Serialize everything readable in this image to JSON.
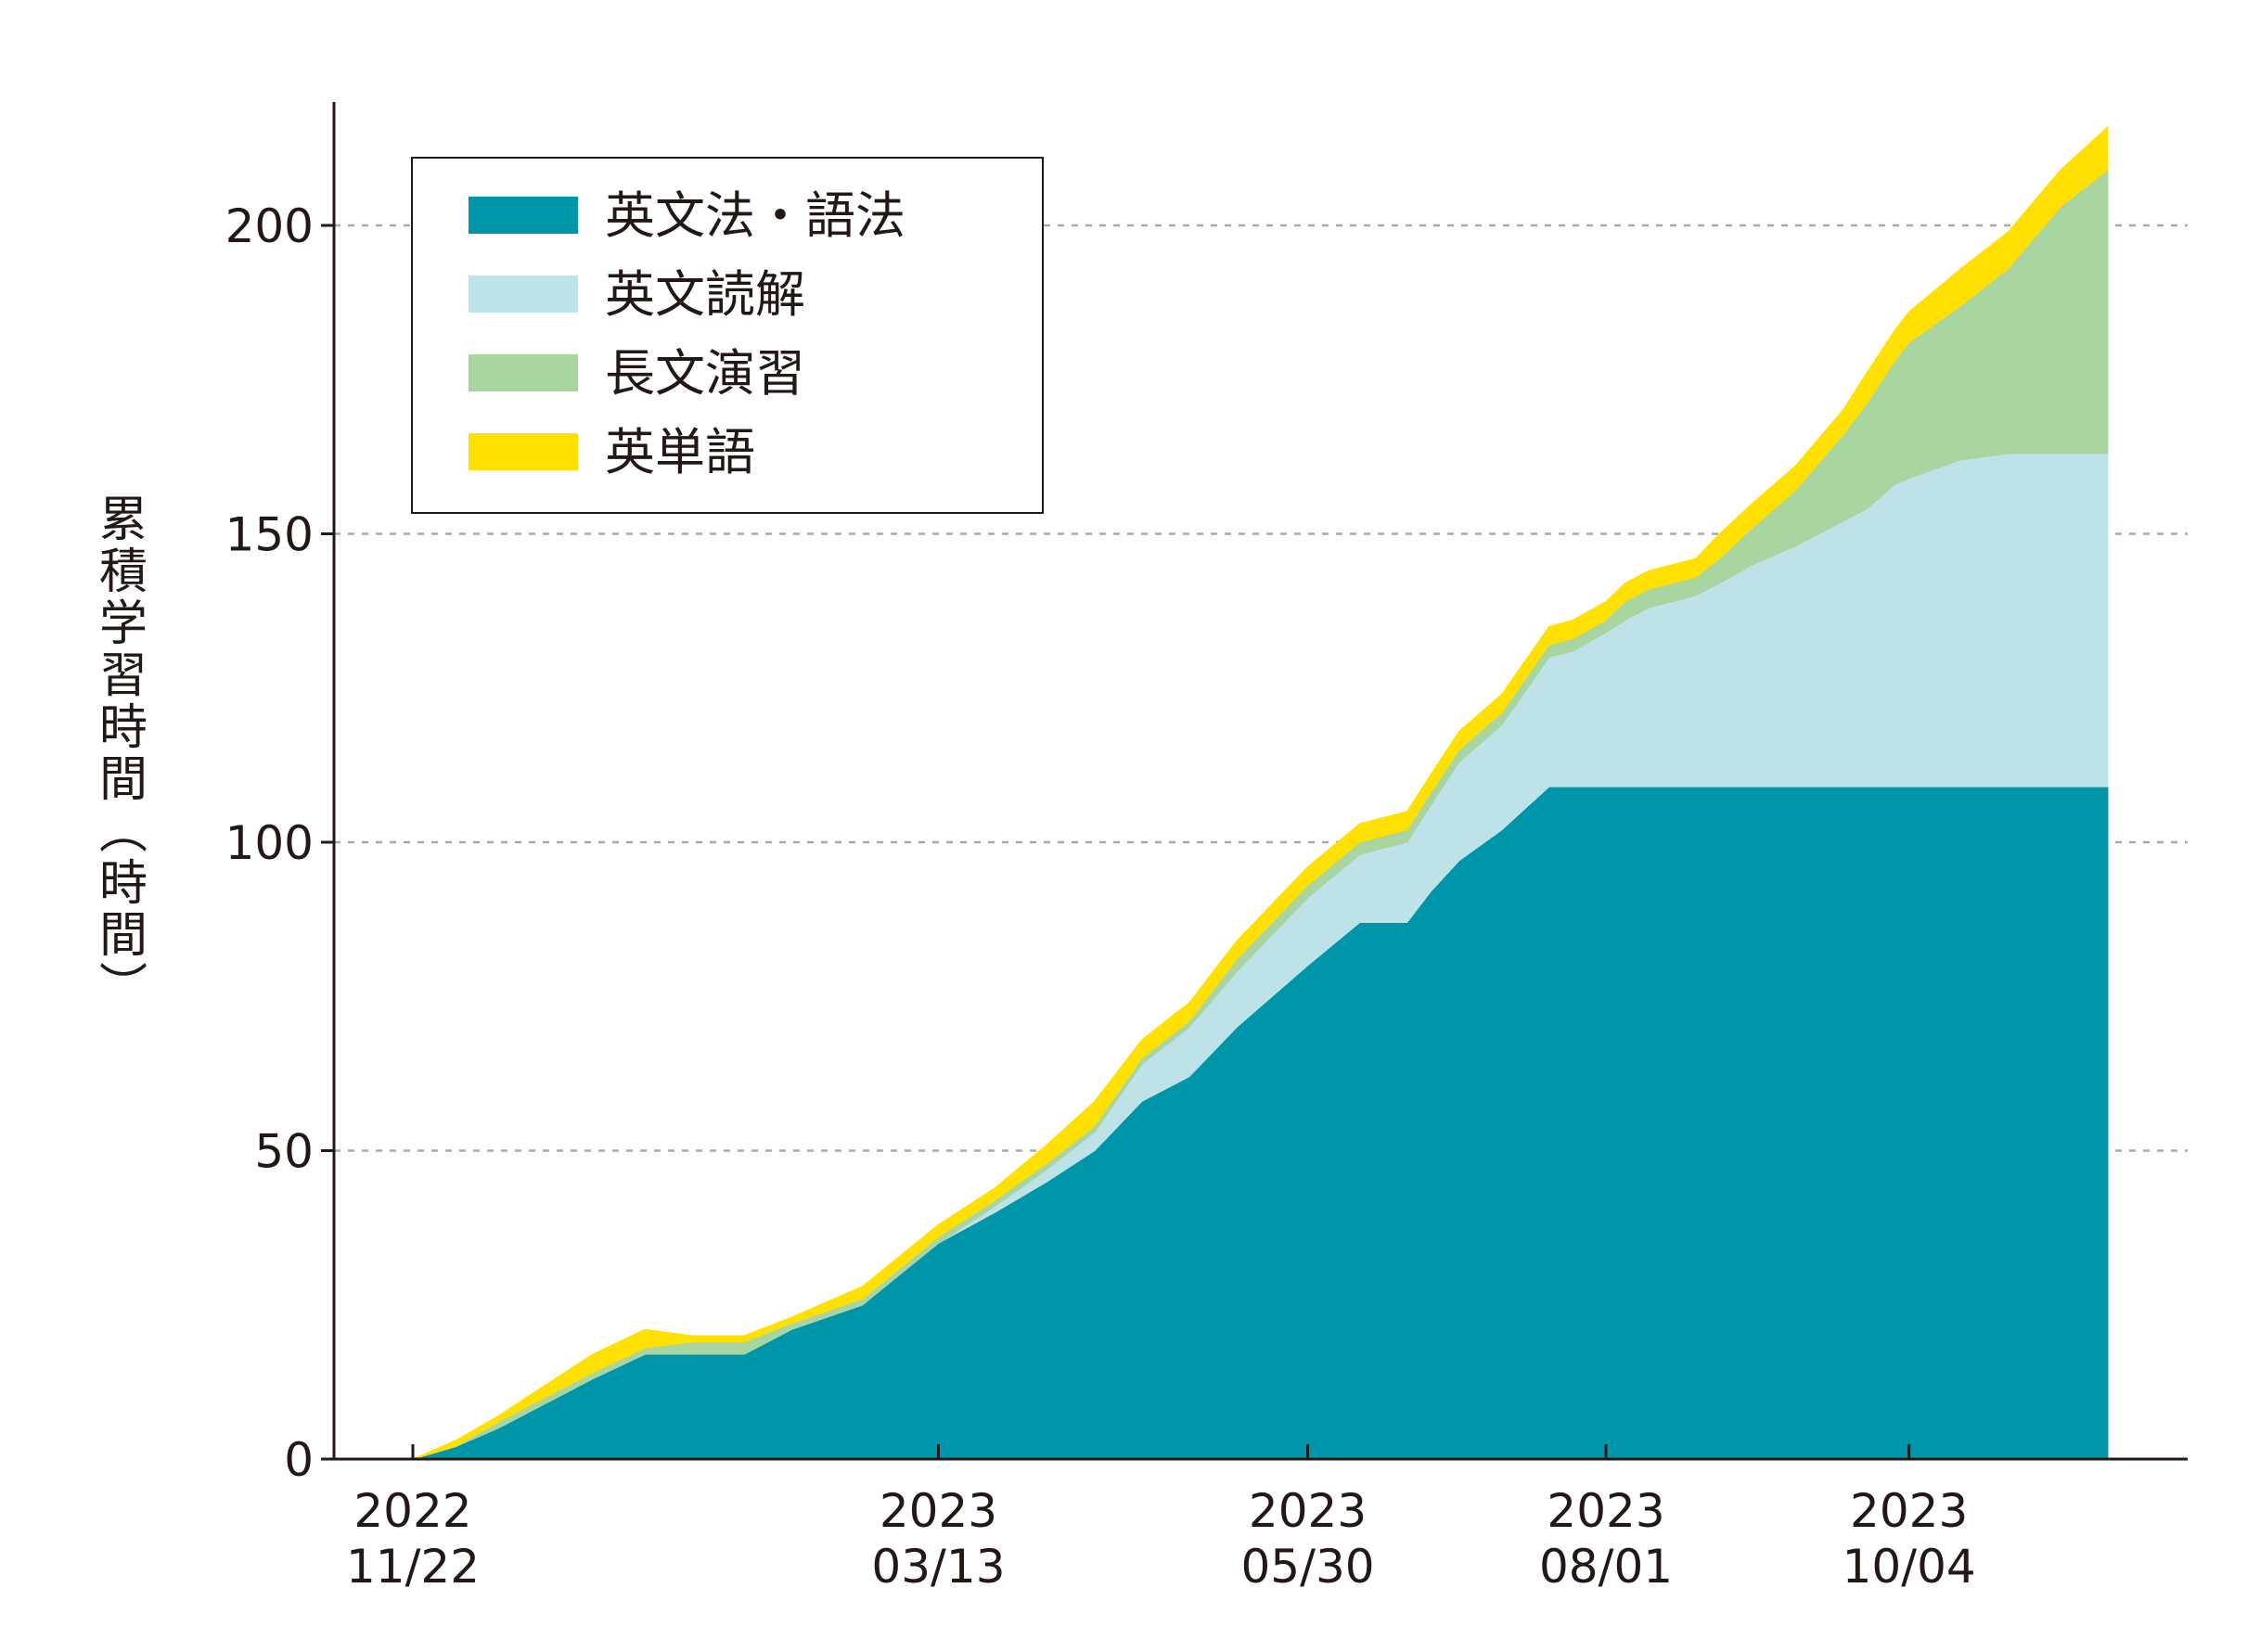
{
  "chart_data": {
    "type": "area",
    "stacked": true,
    "ylabel": "累積学習時間（時間）",
    "ylim": [
      0,
      220
    ],
    "yticks": [
      0,
      50,
      100,
      150,
      200
    ],
    "grid": "horizontal-dashed",
    "legend_position": "top-left",
    "x_start": "2022-11-22",
    "x_end": "2023-11-15",
    "xticks": [
      {
        "date": "2022-11-22",
        "label_year": "2022",
        "label_md": "11/22"
      },
      {
        "date": "2023-03-13",
        "label_year": "2023",
        "label_md": "03/13"
      },
      {
        "date": "2023-05-30",
        "label_year": "2023",
        "label_md": "05/30"
      },
      {
        "date": "2023-08-01",
        "label_year": "2023",
        "label_md": "08/01"
      },
      {
        "date": "2023-10-04",
        "label_year": "2023",
        "label_md": "10/04"
      }
    ],
    "series": [
      {
        "name": "英文法・語法",
        "color": "#0096AA"
      },
      {
        "name": "英文読解",
        "color": "#BDE3E8"
      },
      {
        "name": "長文演習",
        "color": "#A8D5A0"
      },
      {
        "name": "英単語",
        "color": "#FFE000"
      }
    ],
    "dates": [
      "2022-11-22",
      "2022-12-01",
      "2022-12-10",
      "2022-12-20",
      "2022-12-30",
      "2023-01-10",
      "2023-01-20",
      "2023-01-31",
      "2023-02-10",
      "2023-02-25",
      "2023-03-05",
      "2023-03-13",
      "2023-03-25",
      "2023-04-05",
      "2023-04-15",
      "2023-04-25",
      "2023-05-05",
      "2023-05-15",
      "2023-05-30",
      "2023-06-10",
      "2023-06-20",
      "2023-06-25",
      "2023-07-01",
      "2023-07-10",
      "2023-07-20",
      "2023-07-25",
      "2023-08-01",
      "2023-08-05",
      "2023-08-10",
      "2023-08-20",
      "2023-08-25",
      "2023-09-01",
      "2023-09-10",
      "2023-09-20",
      "2023-09-25",
      "2023-10-01",
      "2023-10-04",
      "2023-10-15",
      "2023-10-25",
      "2023-11-05",
      "2023-11-15"
    ],
    "cumulative": {
      "英文法・語法": [
        0,
        2,
        5,
        9,
        13,
        17,
        17,
        17,
        21,
        25,
        30,
        35,
        40,
        45,
        50,
        58,
        62,
        70,
        80,
        87,
        87,
        92,
        97,
        102,
        109,
        109,
        109,
        109,
        109,
        109,
        109,
        109,
        109,
        109,
        109,
        109,
        109,
        109,
        109,
        109,
        109
      ],
      "英文読解": [
        0,
        0,
        0,
        0,
        0,
        0,
        0,
        0,
        0,
        0,
        0,
        0,
        1,
        2,
        3,
        6,
        8,
        9,
        11,
        11,
        13,
        14,
        16,
        17,
        21,
        22,
        25,
        27,
        29,
        31,
        33,
        36,
        39,
        43,
        45,
        49,
        50,
        53,
        54,
        54,
        54
      ],
      "長文演習": [
        0,
        0,
        1,
        1,
        1,
        1,
        2,
        2,
        1,
        1,
        1,
        1,
        1,
        1,
        1,
        1,
        1,
        2,
        2,
        2,
        2,
        2,
        2,
        2,
        2,
        2,
        2,
        3,
        3,
        3,
        4,
        6,
        9,
        14,
        17,
        20,
        22,
        25,
        30,
        40,
        46
      ],
      "英単語": [
        0,
        1,
        1,
        2,
        3,
        3,
        1,
        1,
        1,
        2,
        2,
        2,
        2,
        3,
        4,
        3,
        3,
        3,
        3,
        3,
        3,
        3,
        3,
        3,
        3,
        3,
        3,
        3,
        3,
        3,
        4,
        4,
        4,
        4,
        5,
        5,
        5,
        6,
        6,
        6,
        7
      ]
    }
  }
}
